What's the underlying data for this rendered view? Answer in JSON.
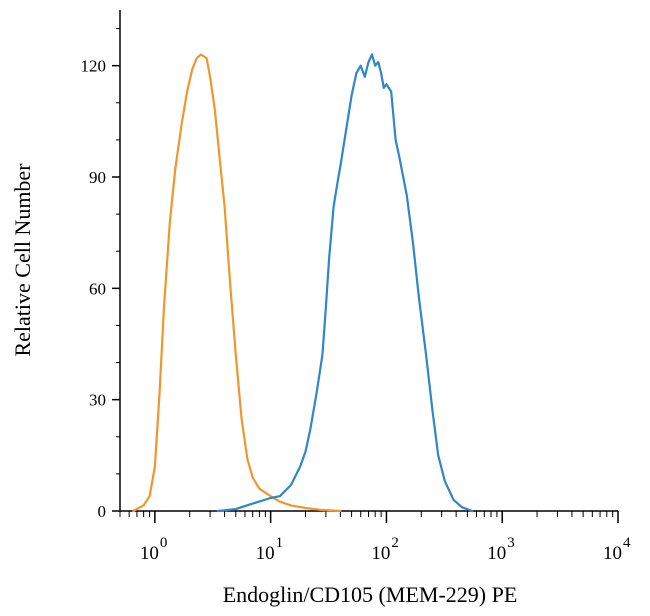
{
  "chart_data": {
    "type": "line",
    "title": "",
    "xlabel": "Endoglin/CD105 (MEM-229) PE",
    "ylabel": "Relative Cell Number",
    "xscale": "log",
    "xlim": [
      0.5,
      10000
    ],
    "ylim": [
      0,
      135
    ],
    "xticks": [
      {
        "value": 1,
        "base": "10",
        "exp": "0"
      },
      {
        "value": 10,
        "base": "10",
        "exp": "1"
      },
      {
        "value": 100,
        "base": "10",
        "exp": "2"
      },
      {
        "value": 1000,
        "base": "10",
        "exp": "3"
      },
      {
        "value": 10000,
        "base": "10",
        "exp": "4"
      }
    ],
    "yticks": [
      0,
      30,
      60,
      90,
      120
    ],
    "grid": false,
    "legend": "none",
    "series": [
      {
        "color": "#f0962c",
        "points": [
          [
            0.65,
            0
          ],
          [
            0.8,
            1.5
          ],
          [
            0.9,
            4
          ],
          [
            1.0,
            12
          ],
          [
            1.1,
            32
          ],
          [
            1.2,
            55
          ],
          [
            1.35,
            78
          ],
          [
            1.5,
            92
          ],
          [
            1.7,
            104
          ],
          [
            1.9,
            113
          ],
          [
            2.1,
            119
          ],
          [
            2.3,
            122
          ],
          [
            2.5,
            123
          ],
          [
            2.8,
            122
          ],
          [
            3.0,
            117
          ],
          [
            3.3,
            108
          ],
          [
            3.6,
            96
          ],
          [
            4.0,
            82
          ],
          [
            4.5,
            60
          ],
          [
            5.0,
            42
          ],
          [
            5.6,
            25
          ],
          [
            6.3,
            14
          ],
          [
            7.0,
            9
          ],
          [
            8.0,
            6
          ],
          [
            10.0,
            4
          ],
          [
            12.0,
            2.5
          ],
          [
            15.0,
            1.5
          ],
          [
            20.0,
            0.8
          ],
          [
            27.0,
            0.3
          ],
          [
            40.0,
            0
          ]
        ]
      },
      {
        "color": "#2f86c8",
        "points": [
          [
            3.5,
            0
          ],
          [
            5.0,
            0.5
          ],
          [
            7.0,
            2
          ],
          [
            10.0,
            3.5
          ],
          [
            12.0,
            4
          ],
          [
            15.0,
            7
          ],
          [
            18.0,
            12
          ],
          [
            20.0,
            16
          ],
          [
            22.0,
            22
          ],
          [
            25.0,
            32
          ],
          [
            28.0,
            42
          ],
          [
            30.0,
            55
          ],
          [
            32.0,
            68
          ],
          [
            35.0,
            82
          ],
          [
            38.0,
            89
          ],
          [
            40.0,
            93
          ],
          [
            45.0,
            103
          ],
          [
            50.0,
            112
          ],
          [
            55.0,
            118
          ],
          [
            60.0,
            120
          ],
          [
            65.0,
            117
          ],
          [
            70.0,
            121
          ],
          [
            75.0,
            123
          ],
          [
            80.0,
            120
          ],
          [
            85.0,
            121
          ],
          [
            90.0,
            118
          ],
          [
            95.0,
            114
          ],
          [
            100.0,
            115
          ],
          [
            110.0,
            113
          ],
          [
            120.0,
            100
          ],
          [
            130.0,
            95
          ],
          [
            150.0,
            85
          ],
          [
            170.0,
            72
          ],
          [
            190.0,
            58
          ],
          [
            220.0,
            42
          ],
          [
            250.0,
            27
          ],
          [
            280.0,
            15
          ],
          [
            320.0,
            8
          ],
          [
            380.0,
            3
          ],
          [
            450.0,
            1
          ],
          [
            550.0,
            0
          ]
        ]
      }
    ]
  }
}
